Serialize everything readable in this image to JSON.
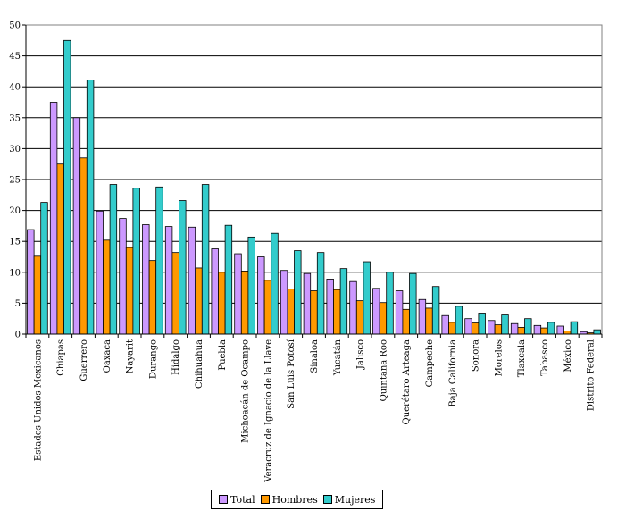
{
  "chart_data": {
    "type": "bar",
    "categories": [
      "Estados Unidos Mexicanos",
      "Chiapas",
      "Guerrero",
      "Oaxaca",
      "Nayarit",
      "Durango",
      "Hidalgo",
      "Chihuahua",
      "Puebla",
      "Michoacán de Ocampo",
      "Veracruz de Ignacio de la Llave",
      "San Luis Potosí",
      "Sinaloa",
      "Yucatán",
      "Jalisco",
      "Quintana Roo",
      "Querétaro Arteaga",
      "Campeche",
      "Baja California",
      "Sonora",
      "Morelos",
      "Tlaxcala",
      "Tabasco",
      "México",
      "Distrito Federal"
    ],
    "series": [
      {
        "name": "Total",
        "color": "#cc99ff",
        "values": [
          16.9,
          37.5,
          35.0,
          19.9,
          18.7,
          17.7,
          17.4,
          17.3,
          13.8,
          13.0,
          12.5,
          10.3,
          9.8,
          8.9,
          8.5,
          7.4,
          7.0,
          5.6,
          3.0,
          2.5,
          2.2,
          1.7,
          1.4,
          1.3,
          0.4
        ]
      },
      {
        "name": "Hombres",
        "color": "#ff9900",
        "values": [
          12.6,
          27.5,
          28.5,
          15.2,
          14.0,
          11.9,
          13.2,
          10.7,
          10.0,
          10.2,
          8.7,
          7.3,
          7.0,
          7.2,
          5.4,
          5.1,
          4.0,
          4.2,
          1.9,
          1.8,
          1.5,
          1.1,
          1.0,
          0.5,
          0.2
        ]
      },
      {
        "name": "Mujeres",
        "color": "#33cccc",
        "values": [
          21.3,
          47.5,
          41.1,
          24.2,
          23.6,
          23.8,
          21.6,
          24.2,
          17.6,
          15.7,
          16.3,
          13.5,
          13.2,
          10.6,
          11.7,
          10.0,
          9.8,
          7.7,
          4.5,
          3.4,
          3.1,
          2.5,
          1.9,
          2.0,
          0.7
        ]
      }
    ],
    "yticks": [
      "0",
      "5",
      "10",
      "15",
      "20",
      "25",
      "30",
      "35",
      "40",
      "45",
      "50"
    ],
    "ylim": [
      0,
      50
    ],
    "grid": true,
    "legend_position": "bottom"
  },
  "legend": [
    {
      "label": "Total",
      "color": "#cc99ff"
    },
    {
      "label": "Hombres",
      "color": "#ff9900"
    },
    {
      "label": "Mujeres",
      "color": "#33cccc"
    }
  ]
}
